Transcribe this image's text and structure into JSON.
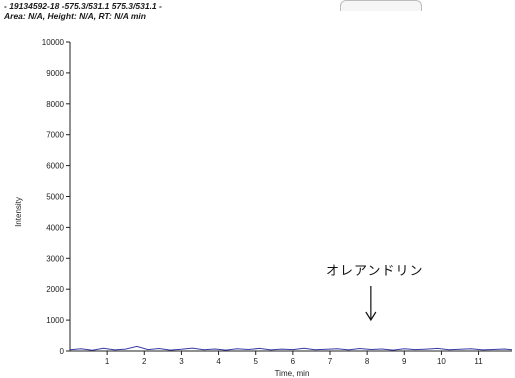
{
  "header": {
    "line1": "- 19134592-18 -575.3/531.1 575.3/531.1 -",
    "line2": "Area: N/A, Height: N/A, RT: N/A min"
  },
  "annotation": {
    "label": "オレアンドリン",
    "x": 8.1
  },
  "chart_data": {
    "type": "line",
    "title": "- 19134592-18 -575.3/531.1 575.3/531.1 -",
    "subtitle": "Area: N/A, Height: N/A, RT: N/A min",
    "xlabel": "Time, min",
    "ylabel": "Intensity",
    "xlim": [
      0,
      11.9
    ],
    "ylim": [
      0,
      10000
    ],
    "xticks": [
      1,
      2,
      3,
      4,
      5,
      6,
      7,
      8,
      9,
      10,
      11
    ],
    "yticks": [
      0,
      1000,
      2000,
      3000,
      4000,
      5000,
      6000,
      7000,
      8000,
      9000,
      10000
    ],
    "grid": false,
    "line_color": "#3a3aa8",
    "series": [
      {
        "x": [
          0.0,
          0.3,
          0.6,
          0.9,
          1.2,
          1.5,
          1.8,
          2.1,
          2.4,
          2.7,
          3.0,
          3.3,
          3.6,
          3.9,
          4.2,
          4.5,
          4.8,
          5.1,
          5.4,
          5.7,
          6.0,
          6.3,
          6.6,
          6.9,
          7.2,
          7.5,
          7.8,
          8.1,
          8.4,
          8.7,
          9.0,
          9.3,
          9.6,
          9.9,
          10.2,
          10.5,
          10.8,
          11.1,
          11.4,
          11.7,
          11.9
        ],
        "y": [
          40,
          70,
          25,
          90,
          35,
          60,
          150,
          45,
          80,
          30,
          55,
          95,
          40,
          65,
          30,
          75,
          50,
          85,
          35,
          60,
          45,
          90,
          40,
          55,
          70,
          35,
          80,
          50,
          65,
          30,
          75,
          45,
          60,
          85,
          40,
          55,
          70,
          35,
          50,
          65,
          40
        ]
      }
    ]
  }
}
